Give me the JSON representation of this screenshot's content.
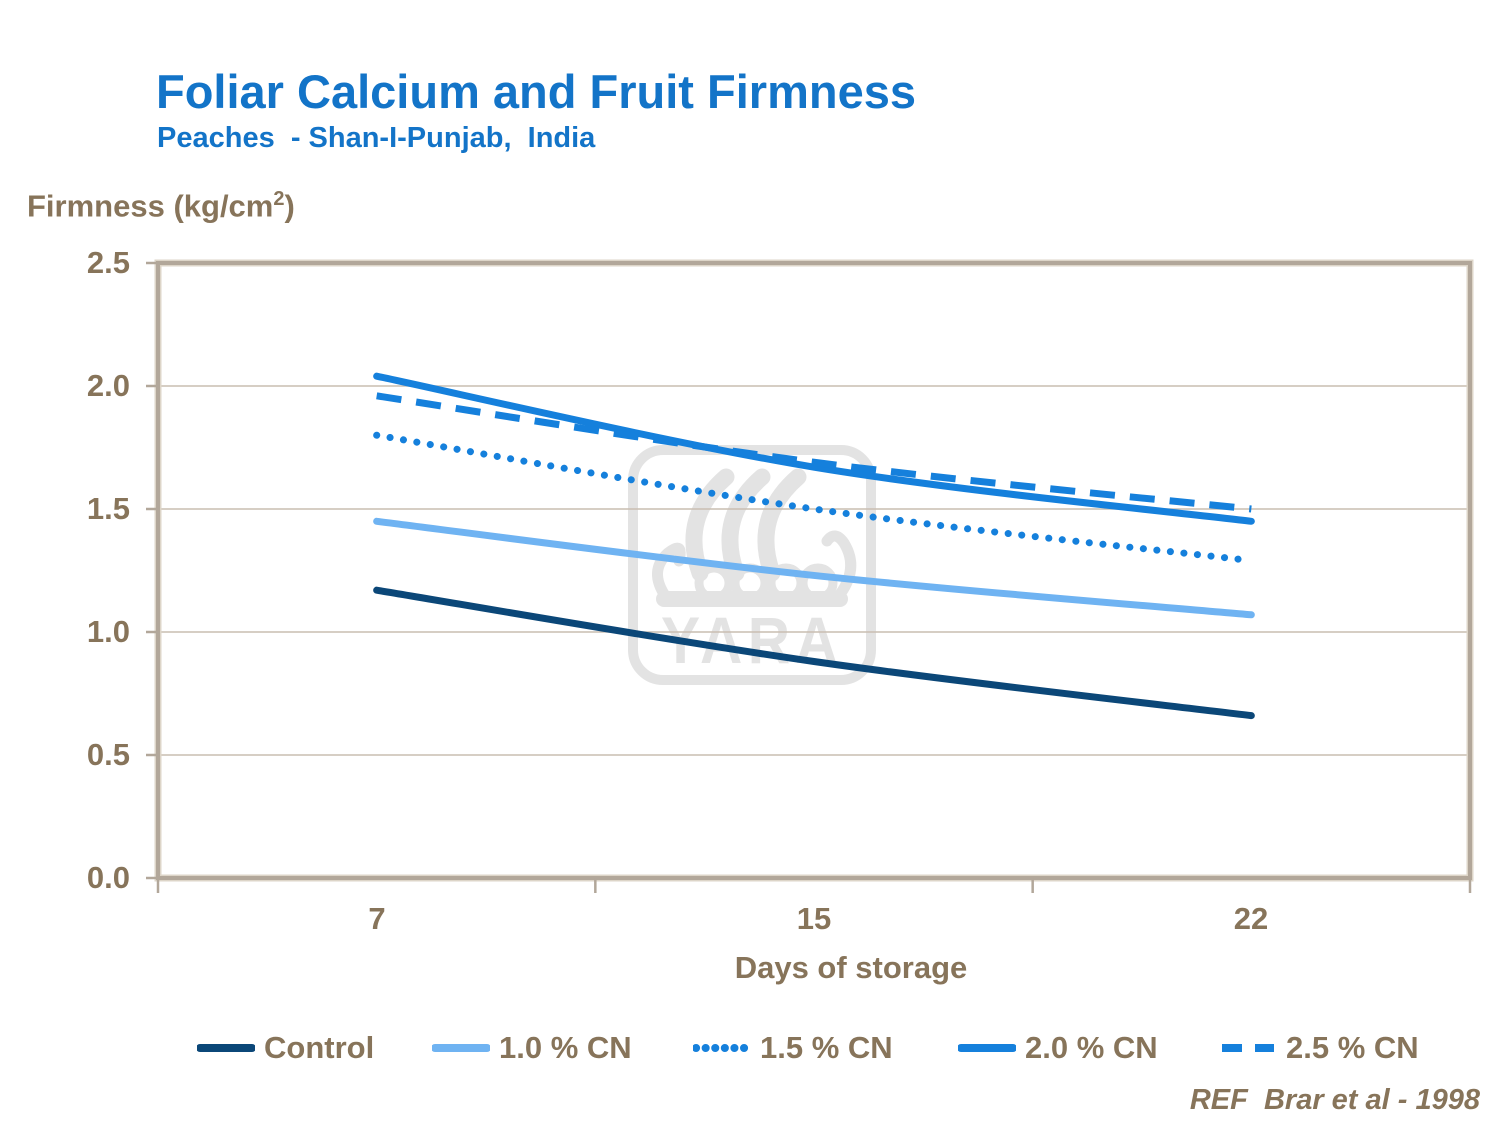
{
  "slide": {
    "title": "Foliar Calcium and Fruit Firmness",
    "subtitle": "Peaches  - Shan-I-Punjab,  India",
    "reference": "REF  Brar et al - 1998"
  },
  "colors": {
    "title_blue": "#1374C8",
    "text_brown": "#87745A",
    "gridline": "#C9BEB1",
    "frame": "#B2A79A",
    "watermark_gray": "#E3E3E3"
  },
  "watermark": {
    "text": "YARA",
    "icon": "viking-ship"
  },
  "chart_data": {
    "type": "line",
    "title": "Foliar Calcium and Fruit Firmness",
    "subtitle": "Peaches - Shan-I-Punjab, India",
    "xlabel": "Days of storage",
    "ylabel_pre": "Firmness (kg/cm",
    "ylabel_sup": "2",
    "ylabel_post": ")",
    "categories": [
      7,
      15,
      22
    ],
    "xtick_labels": [
      "7",
      "15",
      "22"
    ],
    "ytick_labels": [
      "2.5",
      "2.0",
      "1.5",
      "1.0",
      "0.5",
      "0.0"
    ],
    "ytick_values": [
      2.5,
      2.0,
      1.5,
      1.0,
      0.5,
      0.0
    ],
    "ylim": [
      0,
      2.5
    ],
    "grid": "horizontal",
    "legend_position": "bottom",
    "series": [
      {
        "name": "Control",
        "values": [
          1.17,
          0.88,
          0.66
        ],
        "color": "#0B4778",
        "style": "solid"
      },
      {
        "name": "1.0 % CN",
        "values": [
          1.45,
          1.23,
          1.07
        ],
        "color": "#6FB3F2",
        "style": "solid"
      },
      {
        "name": "1.5 % CN",
        "values": [
          1.8,
          1.5,
          1.29
        ],
        "color": "#1580DC",
        "style": "dotted"
      },
      {
        "name": "2.0 % CN",
        "values": [
          2.04,
          1.67,
          1.45
        ],
        "color": "#1580DC",
        "style": "solid"
      },
      {
        "name": "2.5 % CN",
        "values": [
          1.96,
          1.69,
          1.5
        ],
        "color": "#1580DC",
        "style": "dashed"
      }
    ]
  }
}
